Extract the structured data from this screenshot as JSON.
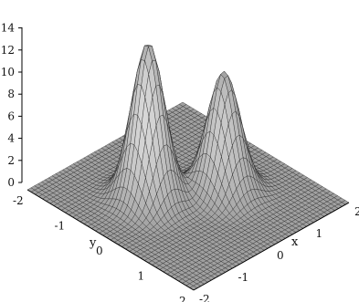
{
  "chart_data": {
    "type": "surface",
    "title": "",
    "xlabel": "x",
    "ylabel": "y",
    "zlabel": "",
    "xlim": [
      -2,
      2
    ],
    "ylim": [
      -2,
      2
    ],
    "zlim": [
      0,
      14
    ],
    "grid": true,
    "x_ticks": [
      "-2",
      "-1",
      "0",
      "1",
      "2"
    ],
    "y_ticks": [
      "-2",
      "-1",
      "0",
      "1",
      "2"
    ],
    "z_ticks": [
      "0",
      "2",
      "4",
      "6",
      "8",
      "10",
      "12",
      "14"
    ],
    "peaks": [
      {
        "x": -0.6,
        "y": -0.4,
        "height": 14.2
      },
      {
        "x": 0.6,
        "y": 0.3,
        "height": 10.8
      }
    ],
    "colors": {
      "surface": "#9a9a9a",
      "mesh": "#1c1c1c",
      "axis": "#000000",
      "background": "#ffffff"
    }
  }
}
